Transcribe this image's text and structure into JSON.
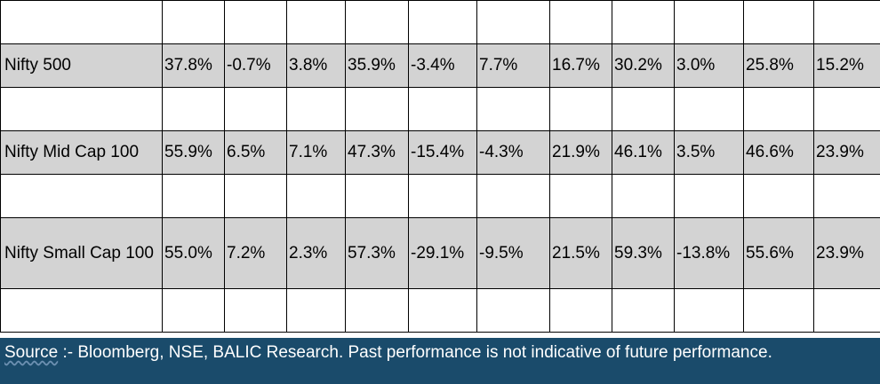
{
  "rows": [
    {
      "name": "Nifty 500",
      "values": [
        "37.8%",
        "-0.7%",
        "3.8%",
        "35.9%",
        "-3.4%",
        "7.7%",
        "16.7%",
        "30.2%",
        "3.0%",
        "25.8%",
        "15.2%"
      ]
    },
    {
      "name": "Nifty Mid Cap 100",
      "values": [
        "55.9%",
        "6.5%",
        "7.1%",
        "47.3%",
        "-15.4%",
        "-4.3%",
        "21.9%",
        "46.1%",
        "3.5%",
        "46.6%",
        "23.9%"
      ]
    },
    {
      "name": "Nifty Small Cap 100",
      "values": [
        "55.0%",
        "7.2%",
        "2.3%",
        "57.3%",
        "-29.1%",
        "-9.5%",
        "21.5%",
        "59.3%",
        "-13.8%",
        "55.6%",
        "23.9%"
      ]
    }
  ],
  "footer": {
    "source_word": "Source",
    "source_rest": " :- Bloomberg, NSE, BALIC Research. Past performance is not indicative of future performance."
  }
}
